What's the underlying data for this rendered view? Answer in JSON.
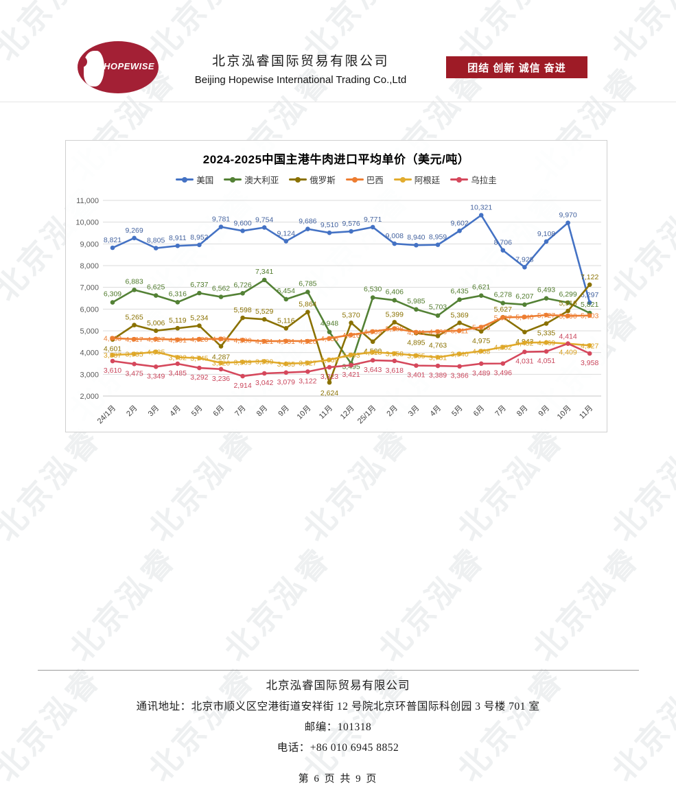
{
  "page": {
    "watermark_text": "北京泓睿",
    "header": {
      "logo_text": "HOPEWISE",
      "company_name_zh": "北京泓睿国际贸易有限公司",
      "company_name_en": "Beijing Hopewise International Trading Co.,Ltd",
      "banner_slogan": "团结  创新  诚信  奋进",
      "banner_color": "#9E1B26"
    },
    "footer": {
      "company": "北京泓睿国际贸易有限公司",
      "address": "通讯地址：北京市顺义区空港街道安祥街 12 号院北京环普国际科创园 3 号楼 701 室",
      "postcode": "邮编：101318",
      "phone": "电话：+86 010 6945 8852",
      "page_number": "第 6 页 共 9 页"
    }
  },
  "chart_data": {
    "type": "line",
    "title": "2024-2025中国主港牛肉进口平均单价（美元/吨）",
    "xlabel": "",
    "ylabel": "",
    "ylim": [
      2000,
      11000
    ],
    "ytick_step": 1000,
    "grid": true,
    "legend_position": "top",
    "categories": [
      "24/1月",
      "2月",
      "3月",
      "4月",
      "5月",
      "6月",
      "7月",
      "8月",
      "9月",
      "10月",
      "11月",
      "12月",
      "25/1月",
      "2月",
      "3月",
      "4月",
      "5月",
      "6月",
      "7月",
      "8月",
      "9月",
      "10月",
      "11月"
    ],
    "series": [
      {
        "name": "美国",
        "color": "#4472C4",
        "label_color": "#44639F",
        "values": [
          8821,
          9269,
          8805,
          8911,
          8952,
          9781,
          9600,
          9754,
          9124,
          9686,
          9510,
          9576,
          9771,
          9008,
          8940,
          8959,
          9602,
          10321,
          8706,
          7928,
          9108,
          9970,
          6297
        ]
      },
      {
        "name": "澳大利亚",
        "color": "#538135",
        "label_color": "#4F7A2B",
        "values": [
          6309,
          6883,
          6625,
          6316,
          6737,
          6562,
          6726,
          7341,
          6454,
          6785,
          4948,
          3495,
          6530,
          6406,
          5985,
          5703,
          6435,
          6621,
          6278,
          6207,
          6493,
          6299,
          5821
        ]
      },
      {
        "name": "俄罗斯",
        "color": "#8A7100",
        "label_color": "#8A7100",
        "values": [
          4601,
          5265,
          5006,
          5119,
          5234,
          4287,
          5598,
          5529,
          5116,
          5864,
          2624,
          5370,
          4500,
          5399,
          4895,
          4763,
          5369,
          4975,
          5627,
          4943,
          5335,
          5916,
          7122
        ]
      },
      {
        "name": "巴西",
        "color": "#ED7D31",
        "label_color": "#ED7D31",
        "values": [
          4663,
          4617,
          4627,
          4591,
          4620,
          4631,
          4580,
          4521,
          4531,
          4526,
          4656,
          4816,
          4969,
          5108,
          4941,
          4966,
          5011,
          5173,
          5617,
          5640,
          5727,
          5690,
          5703
        ]
      },
      {
        "name": "阿根廷",
        "color": "#E2AC2E",
        "label_color": "#D8A01F",
        "values": [
          3887,
          3935,
          4035,
          3782,
          3745,
          3526,
          3569,
          3599,
          3485,
          3527,
          3669,
          3893,
          4018,
          3958,
          3865,
          3781,
          3940,
          4068,
          4252,
          4452,
          4469,
          4409,
          4327
        ]
      },
      {
        "name": "乌拉圭",
        "color": "#D5485C",
        "label_color": "#C9445A",
        "values": [
          3610,
          3475,
          3349,
          3485,
          3292,
          3236,
          2914,
          3042,
          3079,
          3122,
          3323,
          3421,
          3643,
          3618,
          3401,
          3389,
          3366,
          3489,
          3496,
          4031,
          4051,
          4414,
          3958
        ]
      }
    ]
  }
}
